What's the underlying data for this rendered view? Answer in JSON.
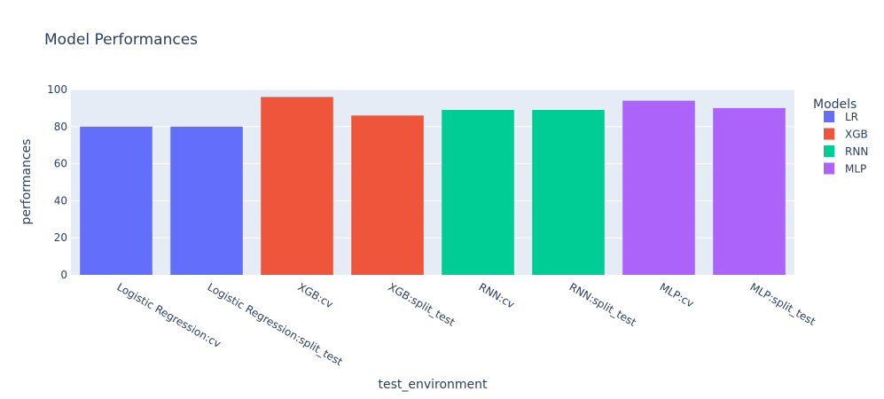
{
  "chart_data": {
    "type": "bar",
    "title": "Model Performances",
    "xlabel": "test_environment",
    "ylabel": "performances",
    "ylim": [
      0,
      100
    ],
    "yticks": [
      0,
      20,
      40,
      60,
      80,
      100
    ],
    "grid": true,
    "legend": {
      "title": "Models",
      "placement": "right"
    },
    "categories": [
      "Logistic Regression:cv",
      "Logistic Regression:split_test",
      "XGB:cv",
      "XGB:split_test",
      "RNN:cv",
      "RNN:split_test",
      "MLP:cv",
      "MLP:split_test"
    ],
    "series": [
      {
        "name": "LR",
        "color": "#636efa",
        "values": [
          80,
          80,
          null,
          null,
          null,
          null,
          null,
          null
        ]
      },
      {
        "name": "XGB",
        "color": "#ef553b",
        "values": [
          null,
          null,
          96,
          86,
          null,
          null,
          null,
          null
        ]
      },
      {
        "name": "RNN",
        "color": "#00cc96",
        "values": [
          null,
          null,
          null,
          null,
          89,
          89,
          null,
          null
        ]
      },
      {
        "name": "MLP",
        "color": "#ab63fa",
        "values": [
          null,
          null,
          null,
          null,
          null,
          null,
          94,
          90
        ]
      }
    ]
  }
}
